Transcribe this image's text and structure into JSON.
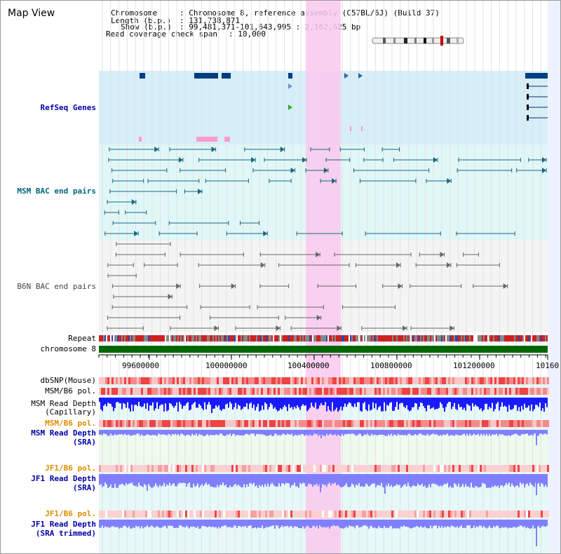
{
  "title": "Map View",
  "header": {
    "chromosome_label": "Chromosome",
    "chromosome_value": ": Chromosome 8, reference assembly (C57BL/6J) (Build 37)",
    "length_label": "Length (b.p.)",
    "length_value": ": 131,738,871",
    "show_label": "Show (b.p.)",
    "show_value": ": 99,481,371-101,643,995 : 2,162,625 bp",
    "coverage_label": "Read coverage check span",
    "coverage_value": ": 10,000"
  },
  "tracks": {
    "refseq": "RefSeq Genes",
    "msm_bac": "MSM BAC end pairs",
    "b6n_bac": "B6N BAC end pairs",
    "repeat": "Repeat",
    "chromosome": "chromosome 8",
    "dbsnp": "dbSNP(Mouse)",
    "msm_b6_pol_1": "MSM/B6 pol.",
    "msm_depth_cap_1": "MSM Read Depth",
    "msm_depth_cap_2": "(Capillary)",
    "msm_b6_pol_2": "MSM/B6 pol.",
    "msm_depth_sra_1": "MSM Read Depth",
    "msm_depth_sra_2": "(SRA)",
    "jf1_b6_pol_1": "JF1/B6 pol.",
    "jf1_depth_sra_1": "JF1 Read Depth",
    "jf1_depth_sra_2": "(SRA)",
    "jf1_b6_pol_2": "JF1/B6 pol.",
    "jf1_depth_trim_1": "JF1 Read Depth",
    "jf1_depth_trim_2": "(SRA trimmed)"
  },
  "axis": {
    "ticks": [
      "99600000",
      "100000000",
      "100400000",
      "100800000",
      "101200000",
      "10160"
    ]
  },
  "colors": {
    "highlight": "#f9c9ef",
    "refseq_bg": "#d6eef8",
    "msm_bg": "#e0f7f7",
    "chromosome": "#006600",
    "depth_blue": "#1a1aff",
    "depth_lilac": "#8080ff"
  }
}
